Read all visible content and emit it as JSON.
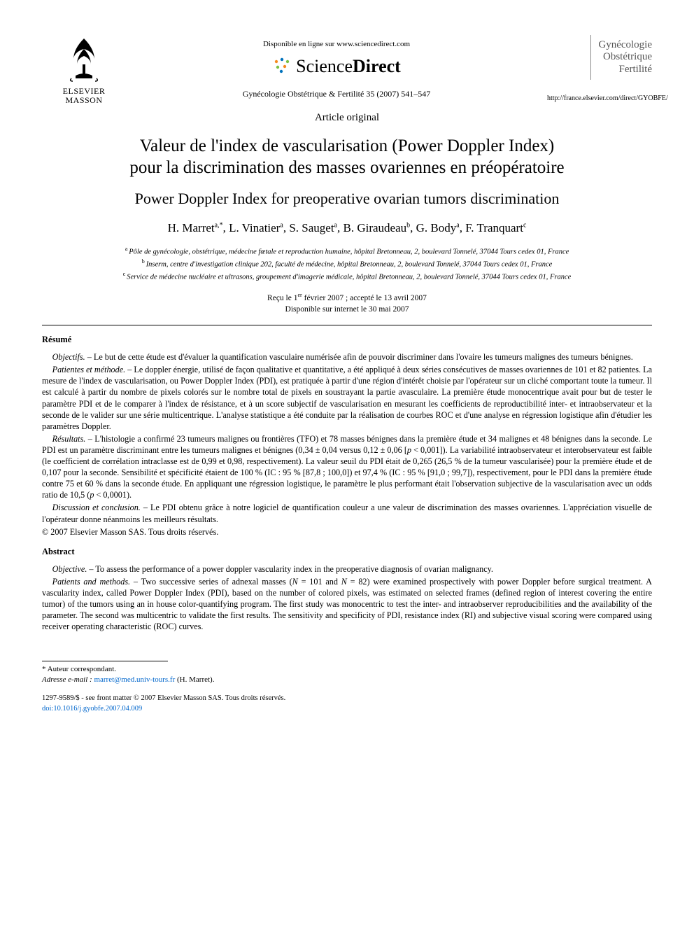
{
  "header": {
    "publisher_name_line1": "ELSEVIER",
    "publisher_name_line2": "MASSON",
    "available_line": "Disponible en ligne sur www.sciencedirect.com",
    "sd_light": "Science",
    "sd_bold": "Direct",
    "citation": "Gynécologie Obstétrique & Fertilité 35 (2007) 541–547",
    "journal_line1": "Gynécologie",
    "journal_line2": "Obstétrique",
    "journal_line3": "Fertilité",
    "journal_url": "http://france.elsevier.com/direct/GYOBFE/",
    "article_type": "Article original"
  },
  "titles": {
    "fr_line1": "Valeur de l'index de vascularisation (Power Doppler Index)",
    "fr_line2": "pour la discrimination des masses ovariennes en préopératoire",
    "en": "Power Doppler Index for preoperative ovarian tumors discrimination"
  },
  "authors_html": "H. Marret<sup>a,*</sup>, L. Vinatier<sup>a</sup>, S. Sauget<sup>a</sup>, B. Giraudeau<sup>b</sup>, G. Body<sup>a</sup>, F. Tranquart<sup>c</sup>",
  "affiliations": {
    "a": "Pôle de gynécologie, obstétrique, médecine fœtale et reproduction humaine, hôpital Bretonneau, 2, boulevard Tonnelé, 37044 Tours cedex 01, France",
    "b": "Inserm, centre d'investigation clinique 202, faculté de médecine, hôpital Bretonneau, 2, boulevard Tonnelé, 37044 Tours cedex 01, France",
    "c": "Service de médecine nucléaire et ultrasons, groupement d'imagerie médicale, hôpital Bretonneau, 2, boulevard Tonnelé, 37044 Tours cedex 01, France"
  },
  "dates": {
    "received_html": "Reçu le 1<sup>er</sup> février 2007 ; accepté le 13 avril 2007",
    "online": "Disponible sur internet le 30 mai 2007"
  },
  "resume": {
    "heading": "Résumé",
    "objectifs_label": "Objectifs.",
    "objectifs_text": " – Le but de cette étude est d'évaluer la quantification vasculaire numérisée afin de pouvoir discriminer dans l'ovaire les tumeurs malignes des tumeurs bénignes.",
    "patientes_label": "Patientes et méthode.",
    "patientes_text_html": " – Le doppler énergie, utilisé de façon qualitative et quantitative, a été appliqué à deux séries consécutives de masses ovariennes de 101 et 82 patientes. La mesure de l'index de vascularisation, ou Power Doppler Index (PDI), est pratiquée à partir d'une région d'intérêt choisie par l'opérateur sur un cliché comportant toute la tumeur. Il est calculé à partir du nombre de pixels colorés sur le nombre total de pixels en soustrayant la partie avasculaire. La première étude monocentrique avait pour but de tester le paramètre PDI et de le comparer à l'index de résistance, et à un score subjectif de vascularisation en mesurant les coefficients de reproductibilité inter- et intraobservateur et la seconde de le valider sur une série multicentrique. L'analyse statistique a été conduite par la réalisation de courbes ROC et d'une analyse en régression logistique afin d'étudier les paramètres Doppler.",
    "resultats_label": "Résultats.",
    "resultats_text_html": " – L'histologie a confirmé 23 tumeurs malignes ou frontières (TFO) et 78 masses bénignes dans la première étude et 34 malignes et 48 bénignes dans la seconde. Le PDI est un paramètre discriminant entre les tumeurs malignes et bénignes (0,34 ± 0,04 versus 0,12 ± 0,06 [<i>p</i> < 0,001]). La variabilité intraobservateur et interobservateur est faible (le coefficient de corrélation intraclasse est de 0,99 et 0,98, respectivement). La valeur seuil du PDI était de 0,265 (26,5 % de la tumeur vascularisée) pour la première étude et de 0,107 pour la seconde. Sensibilité et spécificité étaient de 100 % (IC : 95 % [87,8 ; 100,0]) et 97,4 % (IC : 95 % [91,0 ; 99,7]), respectivement, pour le PDI dans la première étude contre 75 et 60 % dans la seconde étude. En appliquant une régression logistique, le paramètre le plus performant était l'observation subjective de la vascularisation avec un odds ratio de 10,5 (<i>p</i> < 0,0001).",
    "discussion_label": "Discussion et conclusion.",
    "discussion_text": " – Le PDI obtenu grâce à notre logiciel de quantification couleur a une valeur de discrimination des masses ovariennes. L'appréciation visuelle de l'opérateur donne néanmoins les meilleurs résultats.",
    "copyright": "© 2007 Elsevier Masson SAS. Tous droits réservés."
  },
  "abstract": {
    "heading": "Abstract",
    "objective_label": "Objective.",
    "objective_text": " – To assess the performance of a power doppler vascularity index in the preoperative diagnosis of ovarian malignancy.",
    "patients_label": "Patients and methods.",
    "patients_text_html": " – Two successive series of adnexal masses (<i>N</i> = 101 and <i>N</i> = 82) were examined prospectively with power Doppler before surgical treatment. A vascularity index, called Power Doppler Index (PDI), based on the number of colored pixels, was estimated on selected frames (defined region of interest covering the entire tumor) of the tumors using an in house color-quantifying program. The first study was monocentric to test the inter- and intraobserver reproducibilities and the availability of the parameter. The second was multicentric to validate the first results. The sensitivity and specificity of PDI, resistance index (RI) and subjective visual scoring were compared using receiver operating characteristic (ROC) curves."
  },
  "footnote": {
    "corresp_label": "* Auteur correspondant.",
    "email_label": "Adresse e-mail :",
    "email": "marret@med.univ-tours.fr",
    "email_suffix": " (H. Marret)."
  },
  "footer": {
    "line1": "1297-9589/$ - see front matter © 2007 Elsevier Masson SAS. Tous droits réservés.",
    "doi": "doi:10.1016/j.gyobfe.2007.04.009"
  },
  "colors": {
    "text": "#000000",
    "link": "#0066cc",
    "journal_gray": "#555555",
    "sd_orange": "#f68b1f",
    "sd_blue": "#0072bc",
    "sd_green": "#7ac143"
  }
}
